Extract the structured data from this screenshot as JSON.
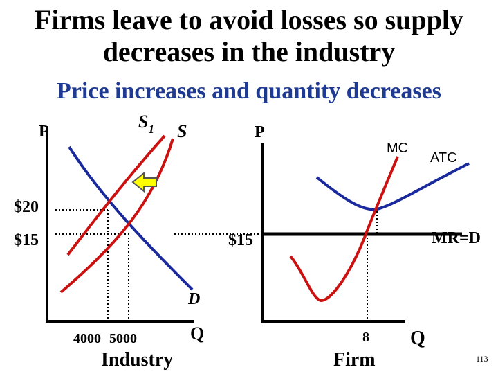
{
  "slide": {
    "title_line1": "Firms leave to avoid losses so supply",
    "title_line2": "decreases in the industry",
    "subtitle": "Price increases and quantity decreases",
    "page_number": "113"
  },
  "industry": {
    "y_axis_label": "P",
    "x_axis_label": "Q",
    "caption": "Industry",
    "price_label_high": "$20",
    "price_label_low": "$15",
    "qty_label_new": "4000",
    "qty_label_old": "5000",
    "supply_new_label": "S",
    "supply_new_subscript": "1",
    "supply_old_label": "S",
    "demand_label": "D"
  },
  "firm": {
    "y_axis_label": "P",
    "x_axis_label": "Q",
    "caption": "Firm",
    "price_label": "$15",
    "qty_label": "8",
    "mc_label": "MC",
    "atc_label": "ATC",
    "mr_label": "MR=D"
  },
  "colors": {
    "supply": "#cc1111",
    "demand": "#1a2a9c",
    "axis": "#000000",
    "arrow_fill": "#ffff00",
    "arrow_stroke": "#555555",
    "subtitle": "#1f3a93"
  }
}
